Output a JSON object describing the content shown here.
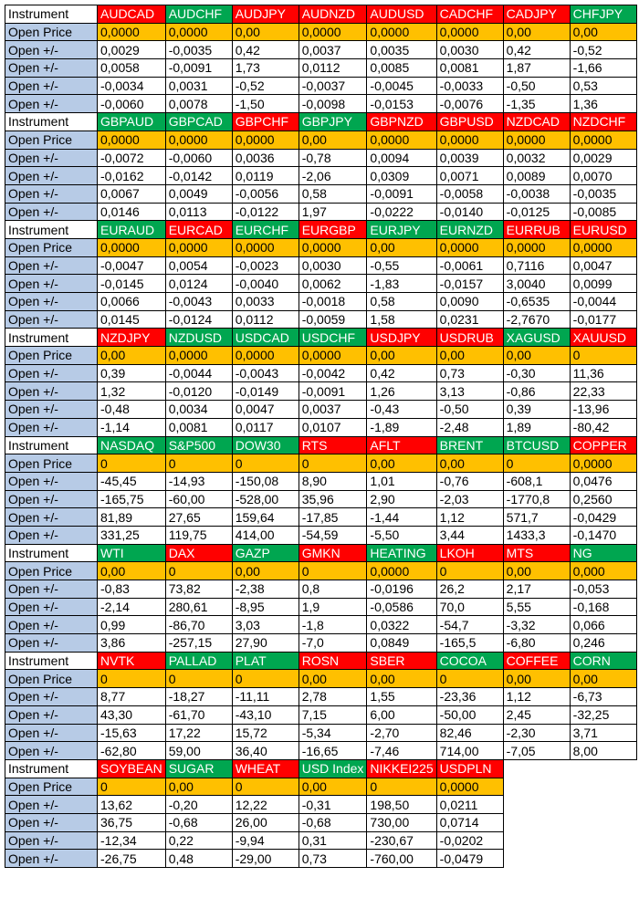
{
  "labels": {
    "instrument": "Instrument",
    "open_price": "Open Price",
    "open_change": "Open +/-"
  },
  "colors": {
    "red": "#ff0000",
    "green": "#00a650",
    "price_fill": "#ffc000",
    "label_fill": "#b7cbe6"
  },
  "blocks": [
    {
      "instruments": [
        {
          "name": "AUDCAD",
          "color": "red"
        },
        {
          "name": "AUDCHF",
          "color": "green"
        },
        {
          "name": "AUDJPY",
          "color": "red"
        },
        {
          "name": "AUDNZD",
          "color": "red"
        },
        {
          "name": "AUDUSD",
          "color": "red"
        },
        {
          "name": "CADCHF",
          "color": "red"
        },
        {
          "name": "CADJPY",
          "color": "red"
        },
        {
          "name": "CHFJPY",
          "color": "green"
        }
      ],
      "open_price": [
        "0,0000",
        "0,0000",
        "0,00",
        "0,0000",
        "0,0000",
        "0,0000",
        "0,00",
        "0,00"
      ],
      "changes": [
        [
          "0,0029",
          "-0,0035",
          "0,42",
          "0,0037",
          "0,0035",
          "0,0030",
          "0,42",
          "-0,52"
        ],
        [
          "0,0058",
          "-0,0091",
          "1,73",
          "0,0112",
          "0,0085",
          "0,0081",
          "1,87",
          "-1,66"
        ],
        [
          "-0,0034",
          "0,0031",
          "-0,52",
          "-0,0037",
          "-0,0045",
          "-0,0033",
          "-0,50",
          "0,53"
        ],
        [
          "-0,0060",
          "0,0078",
          "-1,50",
          "-0,0098",
          "-0,0153",
          "-0,0076",
          "-1,35",
          "1,36"
        ]
      ]
    },
    {
      "instruments": [
        {
          "name": "GBPAUD",
          "color": "green"
        },
        {
          "name": "GBPCAD",
          "color": "green"
        },
        {
          "name": "GBPCHF",
          "color": "red"
        },
        {
          "name": "GBPJPY",
          "color": "green"
        },
        {
          "name": "GBPNZD",
          "color": "red"
        },
        {
          "name": "GBPUSD",
          "color": "red"
        },
        {
          "name": "NZDCAD",
          "color": "red"
        },
        {
          "name": "NZDCHF",
          "color": "red"
        }
      ],
      "open_price": [
        "0,0000",
        "0,0000",
        "0,0000",
        "0,00",
        "0,0000",
        "0,0000",
        "0,0000",
        "0,0000"
      ],
      "changes": [
        [
          "-0,0072",
          "-0,0060",
          "0,0036",
          "-0,78",
          "0,0094",
          "0,0039",
          "0,0032",
          "0,0029"
        ],
        [
          "-0,0162",
          "-0,0142",
          "0,0119",
          "-2,06",
          "0,0309",
          "0,0071",
          "0,0089",
          "0,0070"
        ],
        [
          "0,0067",
          "0,0049",
          "-0,0056",
          "0,58",
          "-0,0091",
          "-0,0058",
          "-0,0038",
          "-0,0035"
        ],
        [
          "0,0146",
          "0,0113",
          "-0,0122",
          "1,97",
          "-0,0222",
          "-0,0140",
          "-0,0125",
          "-0,0085"
        ]
      ]
    },
    {
      "instruments": [
        {
          "name": "EURAUD",
          "color": "green"
        },
        {
          "name": "EURCAD",
          "color": "red"
        },
        {
          "name": "EURCHF",
          "color": "green"
        },
        {
          "name": "EURGBP",
          "color": "red"
        },
        {
          "name": "EURJPY",
          "color": "green"
        },
        {
          "name": "EURNZD",
          "color": "green"
        },
        {
          "name": "EURRUB",
          "color": "red"
        },
        {
          "name": "EURUSD",
          "color": "red"
        }
      ],
      "open_price": [
        "0,0000",
        "0,0000",
        "0,0000",
        "0,0000",
        "0,00",
        "0,0000",
        "0,0000",
        "0,0000"
      ],
      "changes": [
        [
          "-0,0047",
          "0,0054",
          "-0,0023",
          "0,0030",
          "-0,55",
          "-0,0061",
          "0,7116",
          "0,0047"
        ],
        [
          "-0,0145",
          "0,0124",
          "-0,0040",
          "0,0062",
          "-1,83",
          "-0,0157",
          "3,0040",
          "0,0099"
        ],
        [
          "0,0066",
          "-0,0043",
          "0,0033",
          "-0,0018",
          "0,58",
          "0,0090",
          "-0,6535",
          "-0,0044"
        ],
        [
          "0,0145",
          "-0,0124",
          "0,0112",
          "-0,0059",
          "1,58",
          "0,0231",
          "-2,7670",
          "-0,0177"
        ]
      ]
    },
    {
      "instruments": [
        {
          "name": "NZDJPY",
          "color": "red"
        },
        {
          "name": "NZDUSD",
          "color": "green"
        },
        {
          "name": "USDCAD",
          "color": "green"
        },
        {
          "name": "USDCHF",
          "color": "green"
        },
        {
          "name": "USDJPY",
          "color": "red"
        },
        {
          "name": "USDRUB",
          "color": "red"
        },
        {
          "name": "XAGUSD",
          "color": "green"
        },
        {
          "name": "XAUUSD",
          "color": "red"
        }
      ],
      "open_price": [
        "0,00",
        "0,0000",
        "0,0000",
        "0,0000",
        "0,00",
        "0,00",
        "0,00",
        "0"
      ],
      "changes": [
        [
          "0,39",
          "-0,0044",
          "-0,0043",
          "-0,0042",
          "0,42",
          "0,73",
          "-0,30",
          "11,36"
        ],
        [
          "1,32",
          "-0,0120",
          "-0,0149",
          "-0,0091",
          "1,26",
          "3,13",
          "-0,86",
          "22,33"
        ],
        [
          "-0,48",
          "0,0034",
          "0,0047",
          "0,0037",
          "-0,43",
          "-0,50",
          "0,39",
          "-13,96"
        ],
        [
          "-1,14",
          "0,0081",
          "0,0117",
          "0,0107",
          "-1,89",
          "-2,48",
          "1,89",
          "-80,42"
        ]
      ]
    },
    {
      "instruments": [
        {
          "name": "NASDAQ",
          "color": "green"
        },
        {
          "name": "S&P500",
          "color": "green"
        },
        {
          "name": "DOW30",
          "color": "green"
        },
        {
          "name": "RTS",
          "color": "red"
        },
        {
          "name": "AFLT",
          "color": "red"
        },
        {
          "name": "BRENT",
          "color": "green"
        },
        {
          "name": "BTCUSD",
          "color": "green"
        },
        {
          "name": "COPPER",
          "color": "red"
        }
      ],
      "open_price": [
        "0",
        "0",
        "0",
        "0",
        "0,00",
        "0,00",
        "0",
        "0,0000"
      ],
      "changes": [
        [
          "-45,45",
          "-14,93",
          "-150,08",
          "8,90",
          "1,01",
          "-0,76",
          "-608,1",
          "0,0476"
        ],
        [
          "-165,75",
          "-60,00",
          "-528,00",
          "35,96",
          "2,90",
          "-2,03",
          "-1770,8",
          "0,2560"
        ],
        [
          "81,89",
          "27,65",
          "159,64",
          "-17,85",
          "-1,44",
          "1,12",
          "571,7",
          "-0,0429"
        ],
        [
          "331,25",
          "119,75",
          "414,00",
          "-54,59",
          "-5,50",
          "3,44",
          "1433,3",
          "-0,1470"
        ]
      ]
    },
    {
      "instruments": [
        {
          "name": "WTI",
          "color": "green"
        },
        {
          "name": "DAX",
          "color": "red"
        },
        {
          "name": "GAZP",
          "color": "green"
        },
        {
          "name": "GMKN",
          "color": "red"
        },
        {
          "name": "HEATING",
          "color": "green"
        },
        {
          "name": "LKOH",
          "color": "red"
        },
        {
          "name": "MTS",
          "color": "red"
        },
        {
          "name": "NG",
          "color": "green"
        }
      ],
      "open_price": [
        "0,00",
        "0",
        "0,00",
        "0",
        "0,0000",
        "0",
        "0,00",
        "0,000"
      ],
      "changes": [
        [
          "-0,83",
          "73,82",
          "-2,38",
          "0,8",
          "-0,0196",
          "26,2",
          "2,17",
          "-0,053"
        ],
        [
          "-2,14",
          "280,61",
          "-8,95",
          "1,9",
          "-0,0586",
          "70,0",
          "5,55",
          "-0,168"
        ],
        [
          "0,99",
          "-86,70",
          "3,03",
          "-1,8",
          "0,0322",
          "-54,7",
          "-3,32",
          "0,066"
        ],
        [
          "3,86",
          "-257,15",
          "27,90",
          "-7,0",
          "0,0849",
          "-165,5",
          "-6,80",
          "0,246"
        ]
      ]
    },
    {
      "instruments": [
        {
          "name": "NVTK",
          "color": "red"
        },
        {
          "name": "PALLAD",
          "color": "green"
        },
        {
          "name": "PLAT",
          "color": "green"
        },
        {
          "name": "ROSN",
          "color": "red"
        },
        {
          "name": "SBER",
          "color": "red"
        },
        {
          "name": "COCOA",
          "color": "green"
        },
        {
          "name": "COFFEE",
          "color": "red"
        },
        {
          "name": "CORN",
          "color": "green"
        }
      ],
      "open_price": [
        "0",
        "0",
        "0",
        "0,00",
        "0,00",
        "0",
        "0,00",
        "0,00"
      ],
      "changes": [
        [
          "8,77",
          "-18,27",
          "-11,11",
          "2,78",
          "1,55",
          "-23,36",
          "1,12",
          "-6,73"
        ],
        [
          "43,30",
          "-61,70",
          "-43,10",
          "7,15",
          "6,00",
          "-50,00",
          "2,45",
          "-32,25"
        ],
        [
          "-15,63",
          "17,22",
          "15,72",
          "-5,34",
          "-2,70",
          "82,46",
          "-2,30",
          "3,71"
        ],
        [
          "-62,80",
          "59,00",
          "36,40",
          "-16,65",
          "-7,46",
          "714,00",
          "-7,05",
          "8,00"
        ]
      ]
    },
    {
      "instruments": [
        {
          "name": "SOYBEAN",
          "color": "red"
        },
        {
          "name": "SUGAR",
          "color": "green"
        },
        {
          "name": "WHEAT",
          "color": "red"
        },
        {
          "name": "USD Index",
          "color": "green"
        },
        {
          "name": "NIKKEI225",
          "color": "red"
        },
        {
          "name": "USDPLN",
          "color": "red"
        }
      ],
      "open_price": [
        "0",
        "0,00",
        "0",
        "0,00",
        "0",
        "0,0000"
      ],
      "changes": [
        [
          "13,62",
          "-0,20",
          "12,22",
          "-0,31",
          "198,50",
          "0,0211"
        ],
        [
          "36,75",
          "-0,68",
          "26,00",
          "-0,68",
          "730,00",
          "0,0714"
        ],
        [
          "-12,34",
          "0,22",
          "-9,94",
          "0,31",
          "-230,67",
          "-0,0202"
        ],
        [
          "-26,75",
          "0,48",
          "-29,00",
          "0,73",
          "-760,00",
          "-0,0479"
        ]
      ]
    }
  ]
}
